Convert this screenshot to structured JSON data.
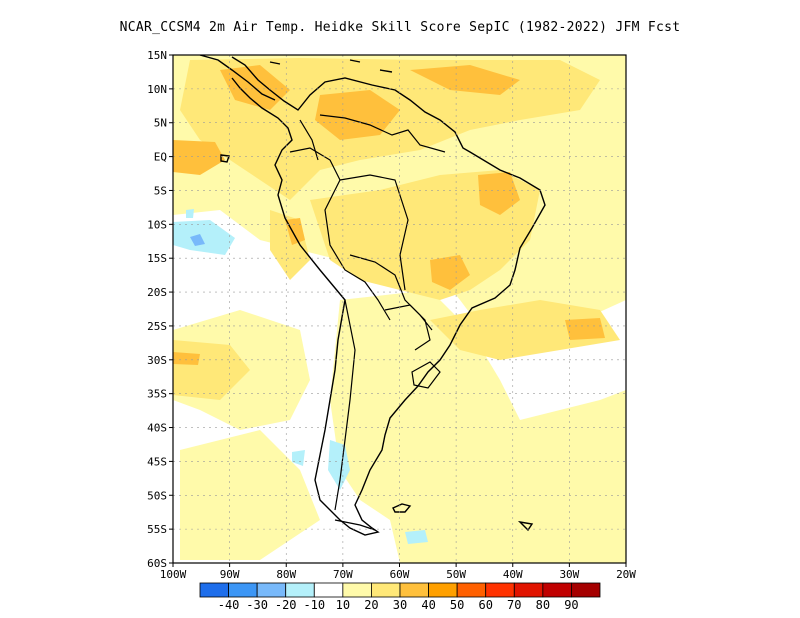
{
  "title": "NCAR_CCSM4  2m Air Temp. Heidke Skill Score SepIC (1982-2022) JFM Fcst",
  "lat_labels": [
    "15N",
    "10N",
    "5N",
    "EQ",
    "5S",
    "10S",
    "15S",
    "20S",
    "25S",
    "30S",
    "35S",
    "40S",
    "45S",
    "50S",
    "55S",
    "60S"
  ],
  "lon_labels": [
    "100W",
    "90W",
    "80W",
    "70W",
    "60W",
    "50W",
    "40W",
    "30W",
    "20W"
  ],
  "lat_values": [
    15,
    10,
    5,
    0,
    -5,
    -10,
    -15,
    -20,
    -25,
    -30,
    -35,
    -40,
    -45,
    -50,
    -55,
    -60
  ],
  "lon_values": [
    -100,
    -90,
    -80,
    -70,
    -60,
    -50,
    -40,
    -30,
    -20
  ],
  "colorbar": {
    "labels": [
      "-40",
      "-30",
      "-20",
      "-10",
      "10",
      "20",
      "30",
      "40",
      "50",
      "60",
      "70",
      "80",
      "90"
    ],
    "colors": [
      "#1e6eeb",
      "#3c96f5",
      "#78b9fa",
      "#b4f0fa",
      "#ffffff",
      "#fffaaa",
      "#ffe878",
      "#ffc03c",
      "#ffa000",
      "#ff6000",
      "#ff3200",
      "#e11400",
      "#c00000",
      "#a50000"
    ]
  },
  "palette": {
    "very_light_yellow": "#fffaaa",
    "light_yellow": "#ffe878",
    "light_orange": "#ffc03c",
    "orange": "#ffa000",
    "light_blue": "#b4f0fa",
    "blue": "#78b9fa"
  }
}
